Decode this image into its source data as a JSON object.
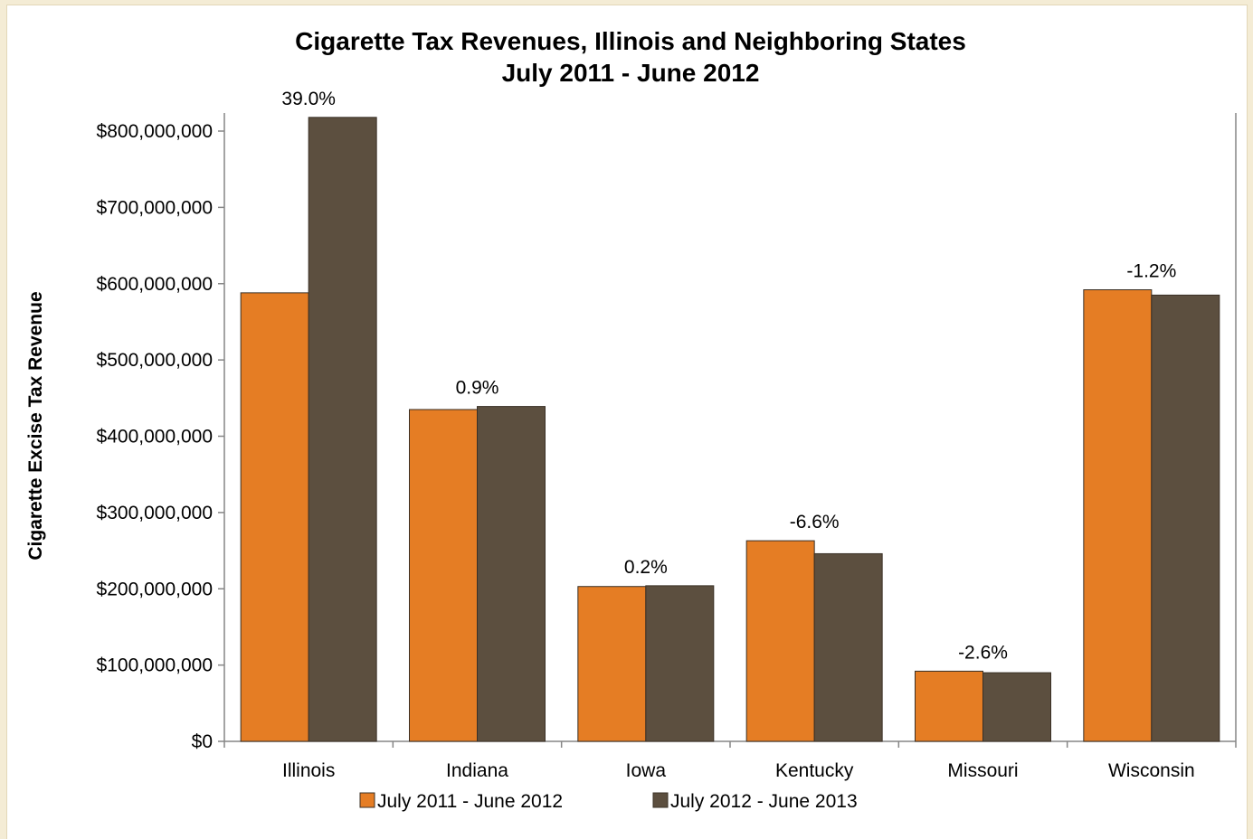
{
  "chart_data": {
    "type": "bar",
    "title": "Cigarette Tax Revenues, Illinois and Neighboring States",
    "subtitle": "July 2011 - June 2012",
    "xlabel": "",
    "ylabel": "Cigarette Excise Tax Revenue",
    "categories": [
      "Illinois",
      "Indiana",
      "Iowa",
      "Kentucky",
      "Missouri",
      "Wisconsin"
    ],
    "series": [
      {
        "name": "July 2011 - June 2012",
        "color": "#e57d24",
        "values": [
          588000000,
          435000000,
          203000000,
          263000000,
          92000000,
          592000000
        ]
      },
      {
        "name": "July 2012 - June 2013",
        "color": "#5c4f3f",
        "values": [
          818000000,
          439000000,
          204000000,
          246000000,
          90000000,
          585000000
        ]
      }
    ],
    "annotations": [
      "39.0%",
      "0.9%",
      "0.2%",
      "-6.6%",
      "-2.6%",
      "-1.2%"
    ],
    "ylim": [
      0,
      800000000
    ],
    "yticks": [
      {
        "value": 0,
        "label": "$0"
      },
      {
        "value": 100000000,
        "label": "$100,000,000"
      },
      {
        "value": 200000000,
        "label": "$200,000,000"
      },
      {
        "value": 300000000,
        "label": "$300,000,000"
      },
      {
        "value": 400000000,
        "label": "$400,000,000"
      },
      {
        "value": 500000000,
        "label": "$500,000,000"
      },
      {
        "value": 600000000,
        "label": "$600,000,000"
      },
      {
        "value": 700000000,
        "label": "$700,000,000"
      },
      {
        "value": 800000000,
        "label": "$800,000,000"
      }
    ],
    "grid": false,
    "legend_position": "bottom"
  }
}
